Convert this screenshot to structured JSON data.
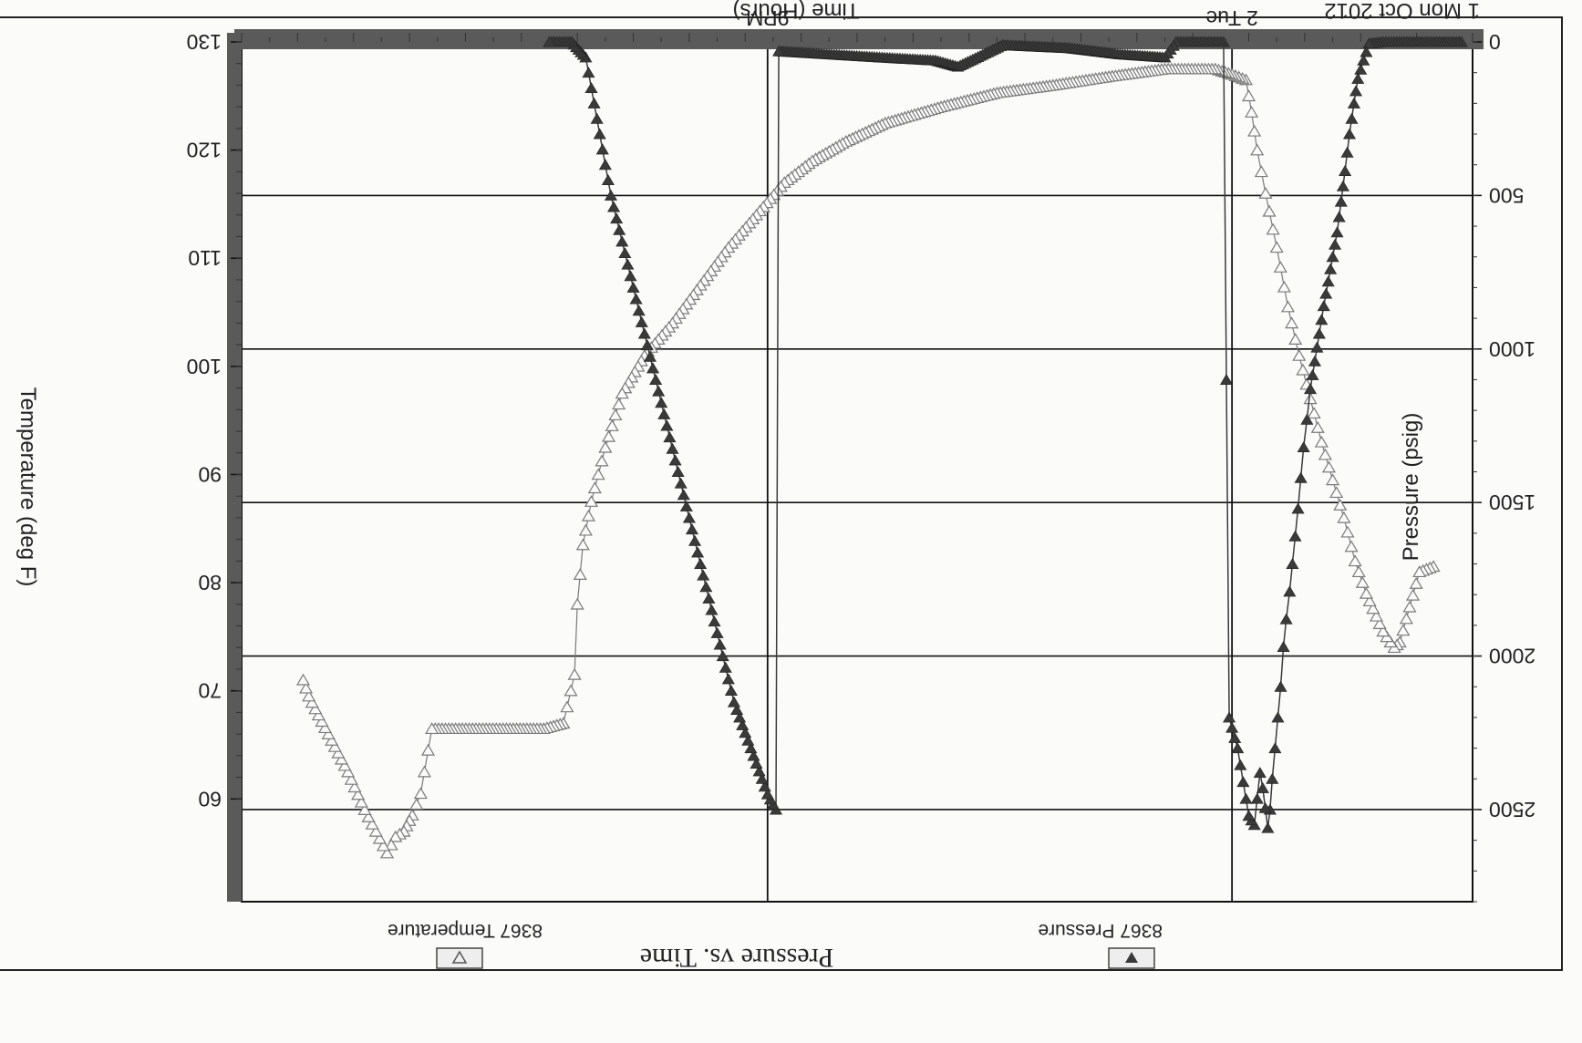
{
  "chart_data": {
    "type": "scatter",
    "title": "Pressure vs. Time",
    "date_label": "1 Mon Oct 2012",
    "xlabel": "Time (Hours)",
    "x_tick_labels": [
      "9PM",
      "2 Tue"
    ],
    "ylabel_left": "Pressure (psig)",
    "ylabel_right": "Temperature (deg F)",
    "pressure_axis": {
      "ticks": [
        "0",
        "500",
        "1000",
        "1500",
        "2000",
        "2500"
      ],
      "range": [
        0,
        2800
      ]
    },
    "temperature_axis": {
      "ticks": [
        "130",
        "120",
        "110",
        "100",
        "90",
        "80",
        "70",
        "60"
      ],
      "range": [
        50.5,
        130
      ]
    },
    "x_axis": {
      "unit": "hours",
      "note": "timeline spans 1 Oct 2012 evening to 2 Oct 2012 early morning"
    },
    "grid": true,
    "orientation": "rotated 180 degrees",
    "series": [
      {
        "name": "8367 Pressure",
        "marker": "filled-triangle",
        "color": "#3a3a3a",
        "axis": "pressure",
        "points": [
          [
            0.2,
            0
          ],
          [
            0.55,
            0
          ],
          [
            1.0,
            0
          ],
          [
            1.4,
            0
          ],
          [
            1.6,
            0
          ],
          [
            1.85,
            5
          ],
          [
            1.95,
            60
          ],
          [
            2.05,
            120
          ],
          [
            2.12,
            200
          ],
          [
            2.2,
            300
          ],
          [
            2.28,
            420
          ],
          [
            2.35,
            520
          ],
          [
            2.42,
            620
          ],
          [
            2.5,
            700
          ],
          [
            2.58,
            780
          ],
          [
            2.66,
            860
          ],
          [
            2.74,
            950
          ],
          [
            2.82,
            1040
          ],
          [
            2.9,
            1130
          ],
          [
            2.96,
            1230
          ],
          [
            3.02,
            1320
          ],
          [
            3.07,
            1420
          ],
          [
            3.12,
            1520
          ],
          [
            3.17,
            1610
          ],
          [
            3.22,
            1700
          ],
          [
            3.27,
            1790
          ],
          [
            3.33,
            1880
          ],
          [
            3.38,
            1970
          ],
          [
            3.43,
            2100
          ],
          [
            3.48,
            2200
          ],
          [
            3.53,
            2300
          ],
          [
            3.58,
            2400
          ],
          [
            3.62,
            2500
          ],
          [
            3.66,
            2560
          ],
          [
            3.75,
            2430
          ],
          [
            3.8,
            2380
          ],
          [
            3.9,
            2550
          ],
          [
            4.0,
            2520
          ],
          [
            4.2,
            2300
          ],
          [
            4.35,
            2200
          ],
          [
            4.45,
            0
          ],
          [
            4.9,
            0
          ],
          [
            5.3,
            0
          ],
          [
            5.5,
            50
          ],
          [
            6.3,
            40
          ],
          [
            7.2,
            20
          ],
          [
            8.4,
            10
          ],
          [
            9.2,
            80
          ],
          [
            9.6,
            60
          ],
          [
            10.6,
            50
          ],
          [
            11.5,
            40
          ],
          [
            12.4,
            30
          ],
          [
            12.45,
            2500
          ],
          [
            12.6,
            2450
          ],
          [
            12.8,
            2350
          ],
          [
            13.0,
            2250
          ],
          [
            13.2,
            2150
          ],
          [
            13.4,
            2000
          ],
          [
            13.6,
            1850
          ],
          [
            13.8,
            1700
          ],
          [
            14.0,
            1550
          ],
          [
            14.2,
            1400
          ],
          [
            14.4,
            1250
          ],
          [
            14.6,
            1100
          ],
          [
            14.8,
            950
          ],
          [
            15.0,
            800
          ],
          [
            15.2,
            650
          ],
          [
            15.4,
            500
          ],
          [
            15.55,
            350
          ],
          [
            15.7,
            200
          ],
          [
            15.85,
            50
          ],
          [
            16.1,
            0
          ],
          [
            16.5,
            0
          ]
        ]
      },
      {
        "name": "8367 Temperature",
        "marker": "open-triangle",
        "color": "#7a7a7a",
        "axis": "temperature",
        "points": [
          [
            0.7,
            81.5
          ],
          [
            0.95,
            81.0
          ],
          [
            1.3,
            74.5
          ],
          [
            1.4,
            74.0
          ],
          [
            1.6,
            75.5
          ],
          [
            1.9,
            79.0
          ],
          [
            2.1,
            82.0
          ],
          [
            2.3,
            86.0
          ],
          [
            2.5,
            89.5
          ],
          [
            2.7,
            93.0
          ],
          [
            2.9,
            97.0
          ],
          [
            3.1,
            101.0
          ],
          [
            3.3,
            105.5
          ],
          [
            3.5,
            111.0
          ],
          [
            3.7,
            116.0
          ],
          [
            3.85,
            120.0
          ],
          [
            3.95,
            123.5
          ],
          [
            4.05,
            126.5
          ],
          [
            4.3,
            127.0
          ],
          [
            4.6,
            127.5
          ],
          [
            5.5,
            127.5
          ],
          [
            6.5,
            126.8
          ],
          [
            7.5,
            126.0
          ],
          [
            8.5,
            125.3
          ],
          [
            9.5,
            124.0
          ],
          [
            10.5,
            122.5
          ],
          [
            11.2,
            120.8
          ],
          [
            11.8,
            119.0
          ],
          [
            12.3,
            117.0
          ],
          [
            12.8,
            114.0
          ],
          [
            13.3,
            111.0
          ],
          [
            13.8,
            107.5
          ],
          [
            14.3,
            104.0
          ],
          [
            14.8,
            101.0
          ],
          [
            15.2,
            97.5
          ],
          [
            15.5,
            92.5
          ],
          [
            15.75,
            87.5
          ],
          [
            15.9,
            83.5
          ],
          [
            16.0,
            78.0
          ],
          [
            16.05,
            71.5
          ],
          [
            16.25,
            67.0
          ],
          [
            16.6,
            66.5
          ],
          [
            18.6,
            66.5
          ],
          [
            18.8,
            60.5
          ],
          [
            18.95,
            58.5
          ],
          [
            19.1,
            57.0
          ],
          [
            19.25,
            56.5
          ],
          [
            19.4,
            55.0
          ],
          [
            19.6,
            57.0
          ],
          [
            19.8,
            59.0
          ],
          [
            20.1,
            62.5
          ],
          [
            20.45,
            66.0
          ],
          [
            20.8,
            69.5
          ],
          [
            20.9,
            71.0
          ]
        ]
      }
    ],
    "legend": {
      "placement": "bottom",
      "entries": [
        "8367 Pressure",
        "8367 Temperature"
      ]
    }
  },
  "legend_box": {
    "pressure_label": "8367 Pressure",
    "temperature_label": "8367 Temperature"
  },
  "colors": {
    "background": "#fbfbfa",
    "frame": "#4a4a4a",
    "grid": "#111111",
    "pressure": "#3a3a3a",
    "temperature": "#7a7a7a"
  }
}
